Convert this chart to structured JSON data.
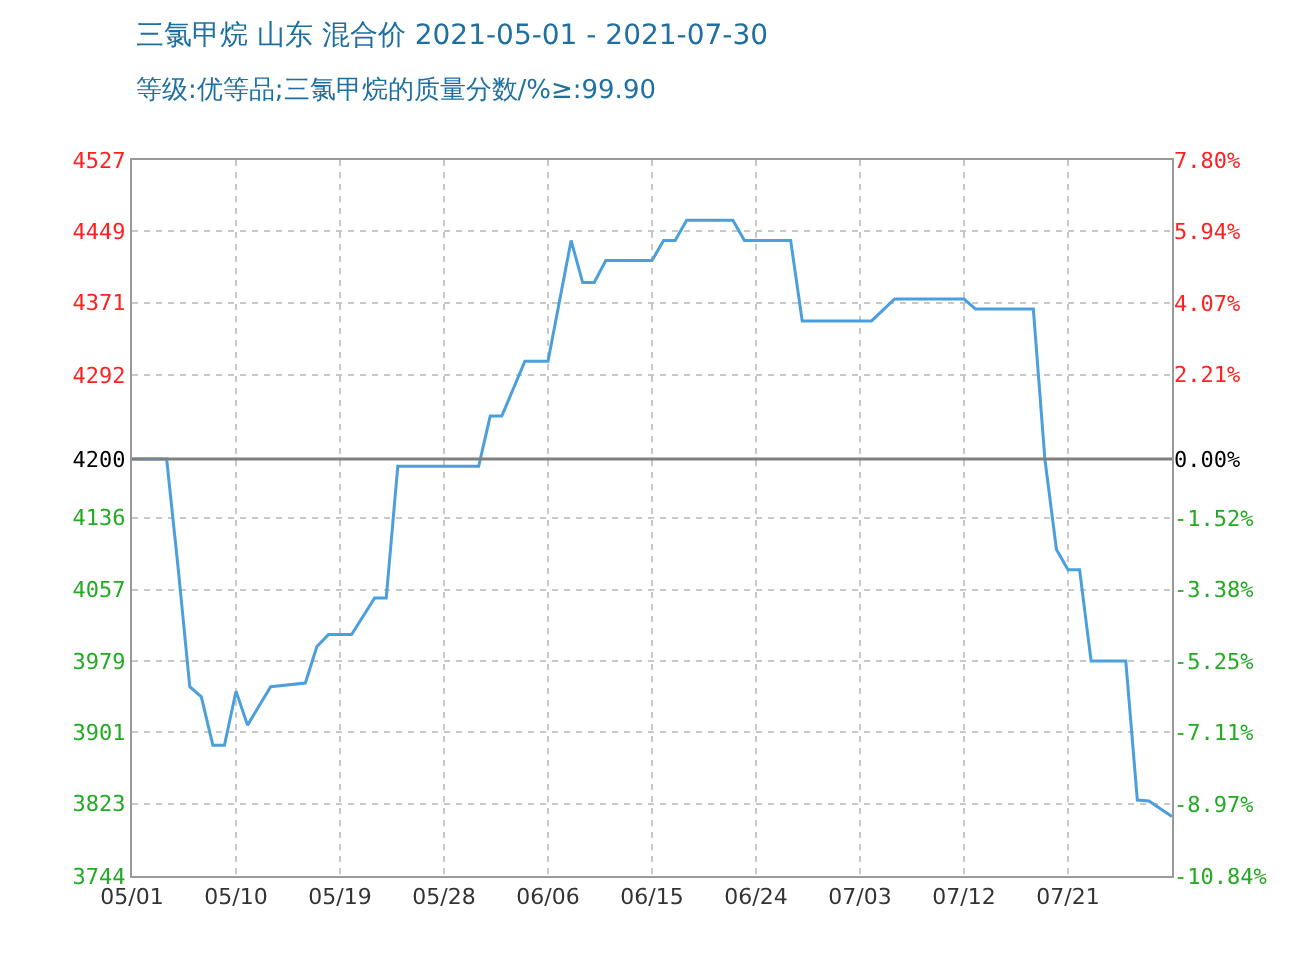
{
  "chart_data": {
    "type": "line",
    "title": "三氯甲烷 山东 混合价 2021-05-01 - 2021-07-30",
    "subtitle": "等级:优等品;三氯甲烷的质量分数/%≥:99.90",
    "x": [
      "2021-05-01",
      "2021-05-04",
      "2021-05-05",
      "2021-05-06",
      "2021-05-07",
      "2021-05-08",
      "2021-05-09",
      "2021-05-10",
      "2021-05-11",
      "2021-05-13",
      "2021-05-16",
      "2021-05-17",
      "2021-05-18",
      "2021-05-20",
      "2021-05-21",
      "2021-05-22",
      "2021-05-23",
      "2021-05-24",
      "2021-05-31",
      "2021-06-01",
      "2021-06-02",
      "2021-06-04",
      "2021-06-06",
      "2021-06-08",
      "2021-06-09",
      "2021-06-10",
      "2021-06-11",
      "2021-06-15",
      "2021-06-16",
      "2021-06-17",
      "2021-06-18",
      "2021-06-22",
      "2021-06-23",
      "2021-06-27",
      "2021-06-28",
      "2021-07-04",
      "2021-07-06",
      "2021-07-12",
      "2021-07-13",
      "2021-07-18",
      "2021-07-19",
      "2021-07-20",
      "2021-07-21",
      "2021-07-22",
      "2021-07-23",
      "2021-07-26",
      "2021-07-27",
      "2021-07-28",
      "2021-07-30"
    ],
    "series": [
      {
        "color": "#4a9fdc",
        "values": [
          4200,
          4200,
          4080,
          3951,
          3940,
          3887,
          3887,
          3946,
          3909,
          3951,
          3955,
          3995,
          4008,
          4008,
          4028,
          4048,
          4048,
          4192,
          4192,
          4247,
          4247,
          4307,
          4307,
          4439,
          4393,
          4393,
          4417,
          4417,
          4439,
          4439,
          4461,
          4461,
          4439,
          4439,
          4351,
          4351,
          4375,
          4375,
          4364,
          4364,
          4200,
          4101,
          4079,
          4079,
          3979,
          3979,
          3827,
          3826,
          3809
        ]
      }
    ],
    "xlim": [
      "2021-05-01",
      "2021-07-30"
    ],
    "xticks": [
      {
        "value": "2021-05-01",
        "label": "05/01"
      },
      {
        "value": "2021-05-10",
        "label": "05/10"
      },
      {
        "value": "2021-05-19",
        "label": "05/19"
      },
      {
        "value": "2021-05-28",
        "label": "05/28"
      },
      {
        "value": "2021-06-06",
        "label": "06/06"
      },
      {
        "value": "2021-06-15",
        "label": "06/15"
      },
      {
        "value": "2021-06-24",
        "label": "06/24"
      },
      {
        "value": "2021-07-03",
        "label": "07/03"
      },
      {
        "value": "2021-07-12",
        "label": "07/12"
      },
      {
        "value": "2021-07-21",
        "label": "07/21"
      }
    ],
    "ylim": [
      3744,
      4527
    ],
    "yticks": [
      3744,
      3823,
      3901,
      3979,
      4057,
      4136,
      4200,
      4292,
      4371,
      4449,
      4527
    ],
    "y2lim": [
      -10.84,
      7.8
    ],
    "y2ticks": [
      {
        "value": -10.84,
        "label": "-10.84%"
      },
      {
        "value": -8.97,
        "label": "-8.97%"
      },
      {
        "value": -7.11,
        "label": "-7.11%"
      },
      {
        "value": -5.25,
        "label": "-5.25%"
      },
      {
        "value": -3.38,
        "label": "-3.38%"
      },
      {
        "value": -1.52,
        "label": "-1.52%"
      },
      {
        "value": 0,
        "label": "0.00%"
      },
      {
        "value": 2.21,
        "label": "2.21%"
      },
      {
        "value": 4.07,
        "label": "4.07%"
      },
      {
        "value": 5.94,
        "label": "5.94%"
      },
      {
        "value": 7.8,
        "label": "7.80%"
      }
    ],
    "ref_lines": [
      {
        "axis": "y",
        "value": 4200,
        "color": "#808080"
      }
    ],
    "grid": true,
    "marker": "none",
    "line_style": "solid"
  }
}
